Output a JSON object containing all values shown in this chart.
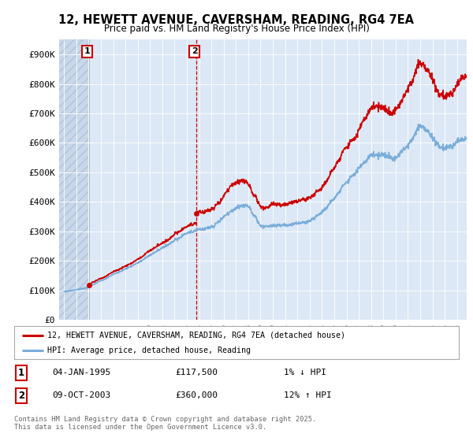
{
  "title": "12, HEWETT AVENUE, CAVERSHAM, READING, RG4 7EA",
  "subtitle": "Price paid vs. HM Land Registry's House Price Index (HPI)",
  "ylim": [
    0,
    950000
  ],
  "yticks": [
    0,
    100000,
    200000,
    300000,
    400000,
    500000,
    600000,
    700000,
    800000,
    900000
  ],
  "ytick_labels": [
    "£0",
    "£100K",
    "£200K",
    "£300K",
    "£400K",
    "£500K",
    "£600K",
    "£700K",
    "£800K",
    "£900K"
  ],
  "sale1_date": 1995.04,
  "sale1_price": 117500,
  "sale1_label": "1",
  "sale1_hpi_pct": "1%",
  "sale1_hpi_dir": "↓",
  "sale1_date_str": "04-JAN-1995",
  "sale2_date": 2003.78,
  "sale2_price": 360000,
  "sale2_label": "2",
  "sale2_hpi_pct": "12%",
  "sale2_hpi_dir": "↑",
  "sale2_date_str": "09-OCT-2003",
  "line_color_house": "#cc0000",
  "line_color_hpi": "#7aadda",
  "marker_color_house": "#cc0000",
  "annotation_box_color": "#cc0000",
  "background_color": "#ffffff",
  "plot_bg_color": "#dce8f5",
  "hatch_bg_color": "#c8d8ea",
  "legend_label_house": "12, HEWETT AVENUE, CAVERSHAM, READING, RG4 7EA (detached house)",
  "legend_label_hpi": "HPI: Average price, detached house, Reading",
  "footer": "Contains HM Land Registry data © Crown copyright and database right 2025.\nThis data is licensed under the Open Government Licence v3.0.",
  "xlim_start": 1992.6,
  "xlim_end": 2025.8,
  "xtick_start": 1993,
  "xtick_end": 2025
}
